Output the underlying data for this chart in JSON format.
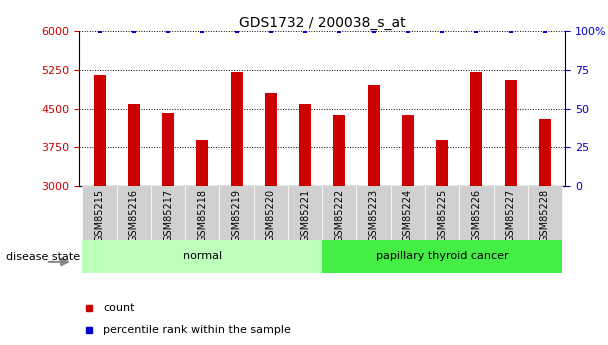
{
  "title": "GDS1732 / 200038_s_at",
  "samples": [
    "GSM85215",
    "GSM85216",
    "GSM85217",
    "GSM85218",
    "GSM85219",
    "GSM85220",
    "GSM85221",
    "GSM85222",
    "GSM85223",
    "GSM85224",
    "GSM85225",
    "GSM85226",
    "GSM85227",
    "GSM85228"
  ],
  "counts": [
    5150,
    4600,
    4420,
    3900,
    5200,
    4800,
    4600,
    4370,
    4950,
    4380,
    3900,
    5200,
    5050,
    4300
  ],
  "percentile": [
    100,
    100,
    100,
    100,
    100,
    100,
    100,
    100,
    100,
    100,
    100,
    100,
    100,
    100
  ],
  "bar_color": "#cc0000",
  "dot_color": "#0000cc",
  "ylim_left": [
    3000,
    6000
  ],
  "ylim_right": [
    0,
    100
  ],
  "yticks_left": [
    3000,
    3750,
    4500,
    5250,
    6000
  ],
  "yticks_right": [
    0,
    25,
    50,
    75,
    100
  ],
  "groups": [
    {
      "label": "normal",
      "start": 0,
      "end": 7,
      "color": "#bbffbb"
    },
    {
      "label": "papillary thyroid cancer",
      "start": 7,
      "end": 14,
      "color": "#44ee44"
    }
  ],
  "disease_state_label": "disease state",
  "legend_count_label": "count",
  "legend_percentile_label": "percentile rank within the sample",
  "background_color": "#ffffff",
  "tick_label_color_left": "#cc0000",
  "tick_label_color_right": "#0000cc",
  "xlabel_area_color": "#d0d0d0",
  "bar_width": 0.35
}
